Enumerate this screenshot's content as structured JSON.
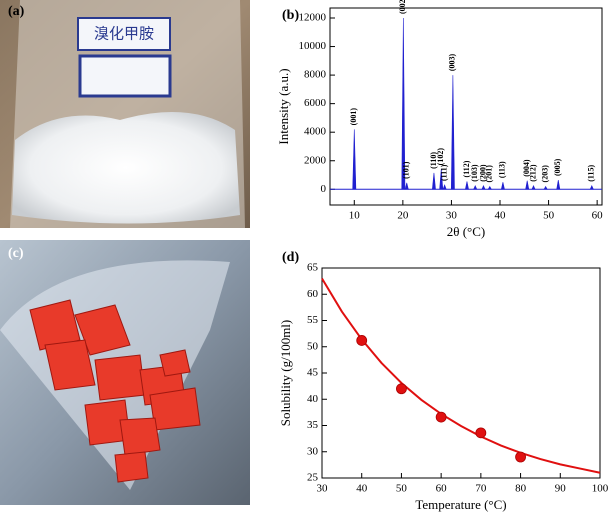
{
  "panels": [
    {
      "label": "(a)",
      "photo_text": "溴化甲胺"
    },
    {
      "label": "(b)"
    },
    {
      "label": "(c)"
    },
    {
      "label": "(d)"
    }
  ],
  "chart_data": [
    {
      "type": "spectrum",
      "x_label": "2θ (°C)",
      "y_label": "Intensity (a.u.)",
      "color": "#2020d0",
      "x": [
        10.0,
        20.1,
        20.8,
        26.4,
        27.9,
        28.6,
        30.3,
        33.2,
        34.9,
        36.6,
        37.9,
        40.6,
        45.6,
        46.9,
        49.4,
        52.0,
        58.9
      ],
      "values": [
        4200,
        12000,
        450,
        1150,
        1400,
        300,
        8000,
        550,
        250,
        250,
        200,
        500,
        600,
        250,
        200,
        650,
        250
      ],
      "peak_labels": [
        "(001)",
        "(002)",
        "(101)",
        "(110)",
        "(102)",
        "(111)",
        "(003)",
        "(112)",
        "(103)",
        "(200)",
        "(201)",
        "(113)",
        "(004)",
        "(212)",
        "(203)",
        "(005)",
        "(115)"
      ],
      "xlim": [
        5,
        61
      ],
      "xticks": [
        10,
        20,
        30,
        40,
        50,
        60
      ],
      "ylim": [
        -1100,
        12700
      ],
      "yticks": [
        0,
        2000,
        4000,
        6000,
        8000,
        10000,
        12000
      ]
    },
    {
      "type": "scatter",
      "x_label": "Temperature (°C)",
      "y_label": "Solubility (g/100ml)",
      "points": {
        "color": "#e01010",
        "x": [
          40,
          50,
          60,
          70,
          80
        ],
        "values": [
          51.2,
          42.0,
          36.6,
          33.6,
          29.0
        ]
      },
      "fit": {
        "color": "#e01010",
        "x": [
          30,
          35,
          40,
          45,
          50,
          55,
          60,
          65,
          70,
          75,
          80,
          85,
          90,
          95,
          100
        ],
        "values": [
          63.0,
          56.7,
          51.4,
          46.9,
          43.1,
          39.9,
          37.2,
          34.9,
          32.9,
          31.2,
          29.8,
          28.6,
          27.6,
          26.8,
          26.0
        ]
      },
      "xlim": [
        30,
        100
      ],
      "xticks": [
        30,
        40,
        50,
        60,
        70,
        80,
        90,
        100
      ],
      "ylim": [
        25,
        65
      ],
      "yticks": [
        25,
        30,
        35,
        40,
        45,
        50,
        55,
        60,
        65
      ]
    }
  ]
}
